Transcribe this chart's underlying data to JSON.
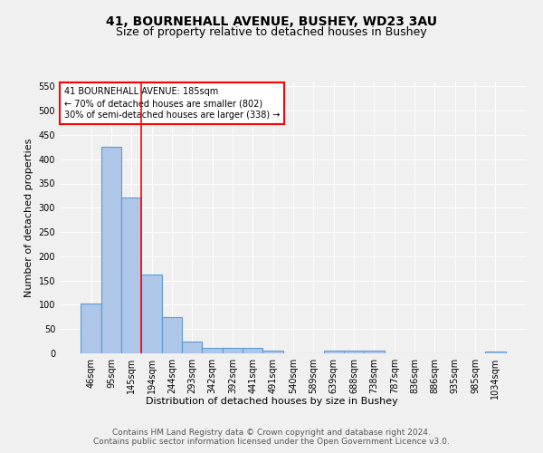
{
  "title_line1": "41, BOURNEHALL AVENUE, BUSHEY, WD23 3AU",
  "title_line2": "Size of property relative to detached houses in Bushey",
  "xlabel": "Distribution of detached houses by size in Bushey",
  "ylabel": "Number of detached properties",
  "footnote": "Contains HM Land Registry data © Crown copyright and database right 2024.\nContains public sector information licensed under the Open Government Licence v3.0.",
  "categories": [
    "46sqm",
    "95sqm",
    "145sqm",
    "194sqm",
    "244sqm",
    "293sqm",
    "342sqm",
    "392sqm",
    "441sqm",
    "491sqm",
    "540sqm",
    "589sqm",
    "639sqm",
    "688sqm",
    "738sqm",
    "787sqm",
    "836sqm",
    "886sqm",
    "935sqm",
    "985sqm",
    "1034sqm"
  ],
  "values": [
    103,
    425,
    322,
    163,
    75,
    25,
    12,
    12,
    11,
    5,
    0,
    0,
    5,
    5,
    5,
    0,
    0,
    0,
    0,
    0,
    3
  ],
  "bar_color": "#aec6e8",
  "bar_edge_color": "#5b9bd5",
  "bar_linewidth": 0.8,
  "red_line_x": 2.5,
  "annotation_text": "41 BOURNEHALL AVENUE: 185sqm\n← 70% of detached houses are smaller (802)\n30% of semi-detached houses are larger (338) →",
  "annotation_box_color": "white",
  "annotation_box_edge": "red",
  "ylim": [
    0,
    560
  ],
  "yticks": [
    0,
    50,
    100,
    150,
    200,
    250,
    300,
    350,
    400,
    450,
    500,
    550
  ],
  "background_color": "#f0f0f0",
  "grid_color": "#ffffff",
  "title_fontsize": 10,
  "subtitle_fontsize": 9,
  "axis_label_fontsize": 8,
  "tick_fontsize": 7,
  "footnote_fontsize": 6.5
}
